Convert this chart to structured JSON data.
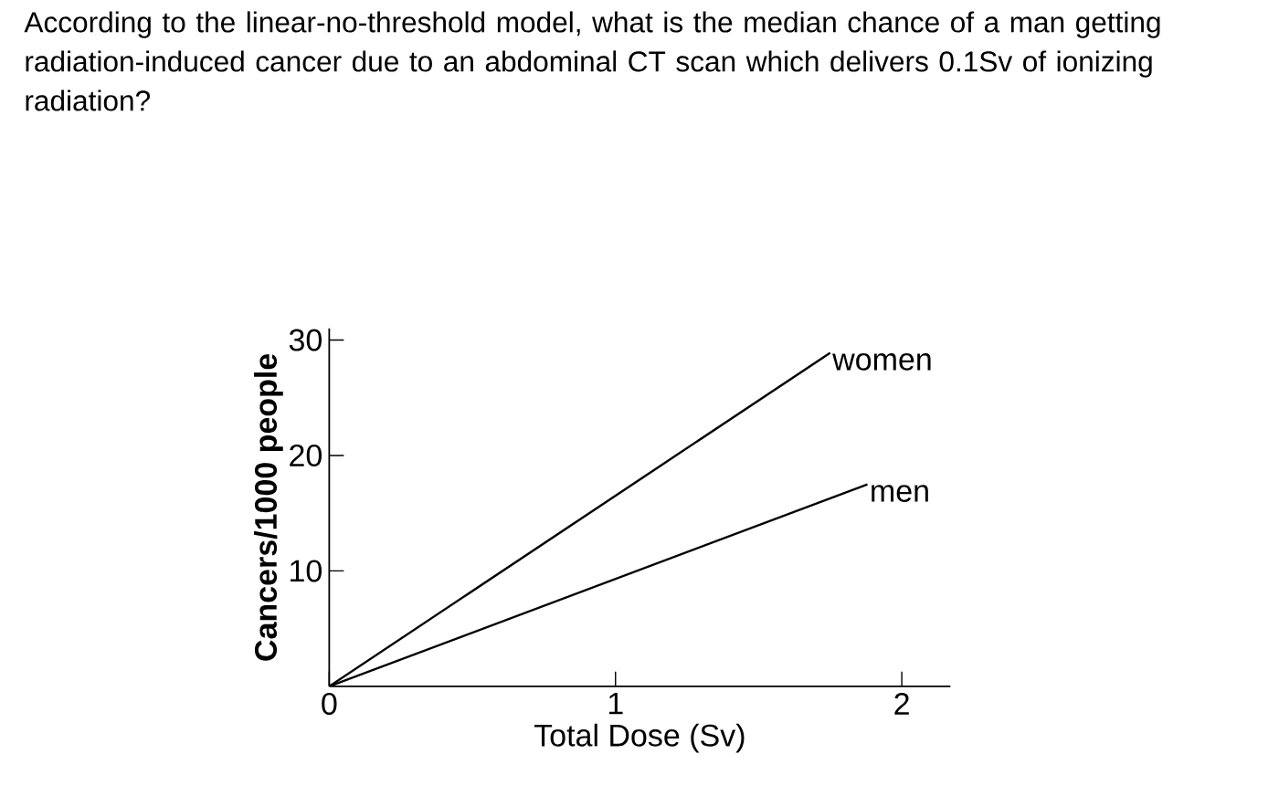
{
  "chart_data": {
    "type": "line",
    "title": "According to the linear-no-threshold model, what is the median chance of a man getting radiation-induced cancer due to an abdominal CT scan which delivers 0.1Sv of ionizing radiation?",
    "xlabel": "Total Dose (Sv)",
    "ylabel": "Cancers/1000 people",
    "x": [
      0,
      1.75
    ],
    "series": [
      {
        "name": "women",
        "color": "#000000",
        "values": [
          0,
          28.9
        ]
      },
      {
        "name": "men",
        "color": "#000000",
        "x": [
          0,
          1.88
        ],
        "values": [
          0,
          17.5
        ]
      }
    ],
    "xlim": [
      0,
      2.17
    ],
    "ylim": [
      0,
      31
    ],
    "xticks": [
      0,
      1,
      2
    ],
    "yticks": [
      10,
      20,
      30
    ],
    "line_style": "solid"
  }
}
